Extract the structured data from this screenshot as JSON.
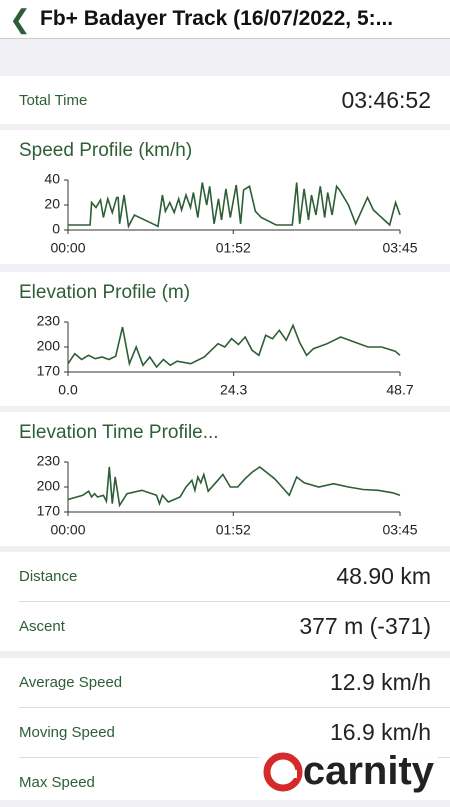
{
  "header": {
    "title": "Fb+ Badayer Track (16/07/2022, 5:..."
  },
  "total_time": {
    "label": "Total Time",
    "value": "03:46:52"
  },
  "charts": [
    {
      "type": "line",
      "title": "Speed Profile (km/h)",
      "color": "#2e5e36",
      "x": [
        0,
        15,
        16,
        19,
        22,
        24,
        27,
        30,
        33,
        34,
        35,
        38,
        41,
        45,
        61,
        64,
        66,
        69,
        72,
        75,
        77,
        80,
        83,
        85,
        88,
        91,
        94,
        96,
        99,
        102,
        104,
        107,
        110,
        114,
        117,
        119,
        123,
        127,
        131,
        141,
        152,
        155,
        157,
        160,
        163,
        165,
        168,
        171,
        174,
        176,
        179,
        182,
        184,
        190,
        195,
        203,
        207,
        218,
        222,
        225
      ],
      "values": [
        4,
        4,
        22,
        18,
        24,
        10,
        25,
        14,
        26,
        26,
        5,
        28,
        3,
        12,
        3,
        28,
        15,
        22,
        14,
        25,
        16,
        28,
        18,
        30,
        10,
        38,
        20,
        35,
        5,
        25,
        8,
        33,
        10,
        36,
        5,
        32,
        35,
        15,
        10,
        4,
        4,
        38,
        5,
        33,
        8,
        28,
        12,
        35,
        10,
        30,
        12,
        35,
        32,
        20,
        5,
        26,
        16,
        4,
        22,
        12
      ],
      "xlim": [
        0,
        225
      ],
      "xticks": [
        {
          "value": 0,
          "label": "00:00"
        },
        {
          "value": 112,
          "label": "01:52"
        },
        {
          "value": 225,
          "label": "03:45"
        }
      ],
      "ylim": [
        0,
        40
      ],
      "yticks": [
        0,
        20,
        40
      ]
    },
    {
      "type": "line",
      "title": "Elevation Profile (m)",
      "color": "#2e5e36",
      "x": [
        0,
        1,
        2,
        3,
        4,
        5,
        6,
        7,
        8,
        9,
        10,
        11,
        12,
        13,
        14,
        15,
        16,
        18,
        20,
        21,
        22,
        23,
        24,
        25,
        26,
        27,
        28,
        29,
        30,
        31,
        32,
        33,
        34,
        35,
        36,
        38,
        40,
        42,
        44,
        46,
        48,
        48.7
      ],
      "values": [
        180,
        192,
        185,
        190,
        186,
        188,
        185,
        189,
        224,
        180,
        200,
        178,
        188,
        176,
        185,
        178,
        183,
        180,
        188,
        196,
        204,
        200,
        210,
        203,
        212,
        196,
        190,
        214,
        210,
        220,
        208,
        226,
        205,
        190,
        198,
        204,
        212,
        206,
        200,
        200,
        195,
        190
      ],
      "xlim": [
        0,
        48.7
      ],
      "xticks": [
        {
          "value": 0,
          "label": "0.0"
        },
        24.3,
        48.7
      ],
      "ylim": [
        170,
        230
      ],
      "yticks": [
        170,
        200,
        230
      ]
    },
    {
      "type": "line",
      "title": "Elevation Time Profile...",
      "color": "#2e5e36",
      "x": [
        0,
        10,
        14,
        16,
        18,
        20,
        24,
        26,
        28,
        30,
        32,
        35,
        40,
        50,
        60,
        62,
        64,
        68,
        72,
        76,
        80,
        84,
        86,
        88,
        90,
        92,
        95,
        100,
        105,
        110,
        115,
        120,
        125,
        130,
        140,
        145,
        150,
        155,
        160,
        170,
        180,
        190,
        200,
        210,
        220,
        225
      ],
      "values": [
        185,
        190,
        195,
        188,
        192,
        188,
        190,
        183,
        224,
        180,
        212,
        178,
        192,
        196,
        190,
        180,
        190,
        182,
        185,
        188,
        200,
        208,
        196,
        212,
        205,
        215,
        195,
        205,
        215,
        200,
        200,
        210,
        218,
        224,
        210,
        200,
        190,
        212,
        205,
        200,
        204,
        200,
        197,
        196,
        193,
        190
      ],
      "xlim": [
        0,
        225
      ],
      "xticks": [
        {
          "value": 0,
          "label": "00:00"
        },
        {
          "value": 112,
          "label": "01:52"
        },
        {
          "value": 225,
          "label": "03:45"
        }
      ],
      "ylim": [
        170,
        230
      ],
      "yticks": [
        170,
        200,
        230
      ]
    }
  ],
  "stats1": [
    {
      "label": "Distance",
      "value": "48.90 km"
    },
    {
      "label": "Ascent",
      "value": "377 m (-371)"
    }
  ],
  "stats2": [
    {
      "label": "Average Speed",
      "value": "12.9 km/h"
    },
    {
      "label": "Moving Speed",
      "value": "16.9 km/h"
    },
    {
      "label": "Max Speed"
    }
  ],
  "watermark": "carnity"
}
